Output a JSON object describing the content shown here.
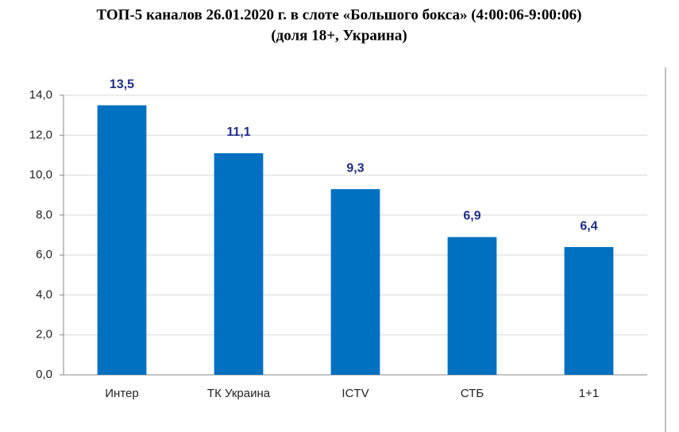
{
  "chart_data": {
    "type": "bar",
    "title": "ТОП-5 каналов 26.01.2020 г. в слоте «Большого бокса» (4:00:06-9:00:06)",
    "subtitle": "(доля 18+, Украина)",
    "categories": [
      "Интер",
      "ТК Украина",
      "ICTV",
      "СТБ",
      "1+1"
    ],
    "values": [
      13.5,
      11.1,
      9.3,
      6.9,
      6.4
    ],
    "value_labels": [
      "13,5",
      "11,1",
      "9,3",
      "6,9",
      "6,4"
    ],
    "color": "#0070c0",
    "ylim": [
      0,
      14
    ],
    "yticks": [
      {
        "value": 0,
        "label": "0,0"
      },
      {
        "value": 2,
        "label": "2,0"
      },
      {
        "value": 4,
        "label": "4,0"
      },
      {
        "value": 6,
        "label": "6,0"
      },
      {
        "value": 8,
        "label": "8,0"
      },
      {
        "value": 10,
        "label": "10,0"
      },
      {
        "value": 12,
        "label": "12,0"
      },
      {
        "value": 14,
        "label": "14,0"
      }
    ],
    "grid": true
  }
}
